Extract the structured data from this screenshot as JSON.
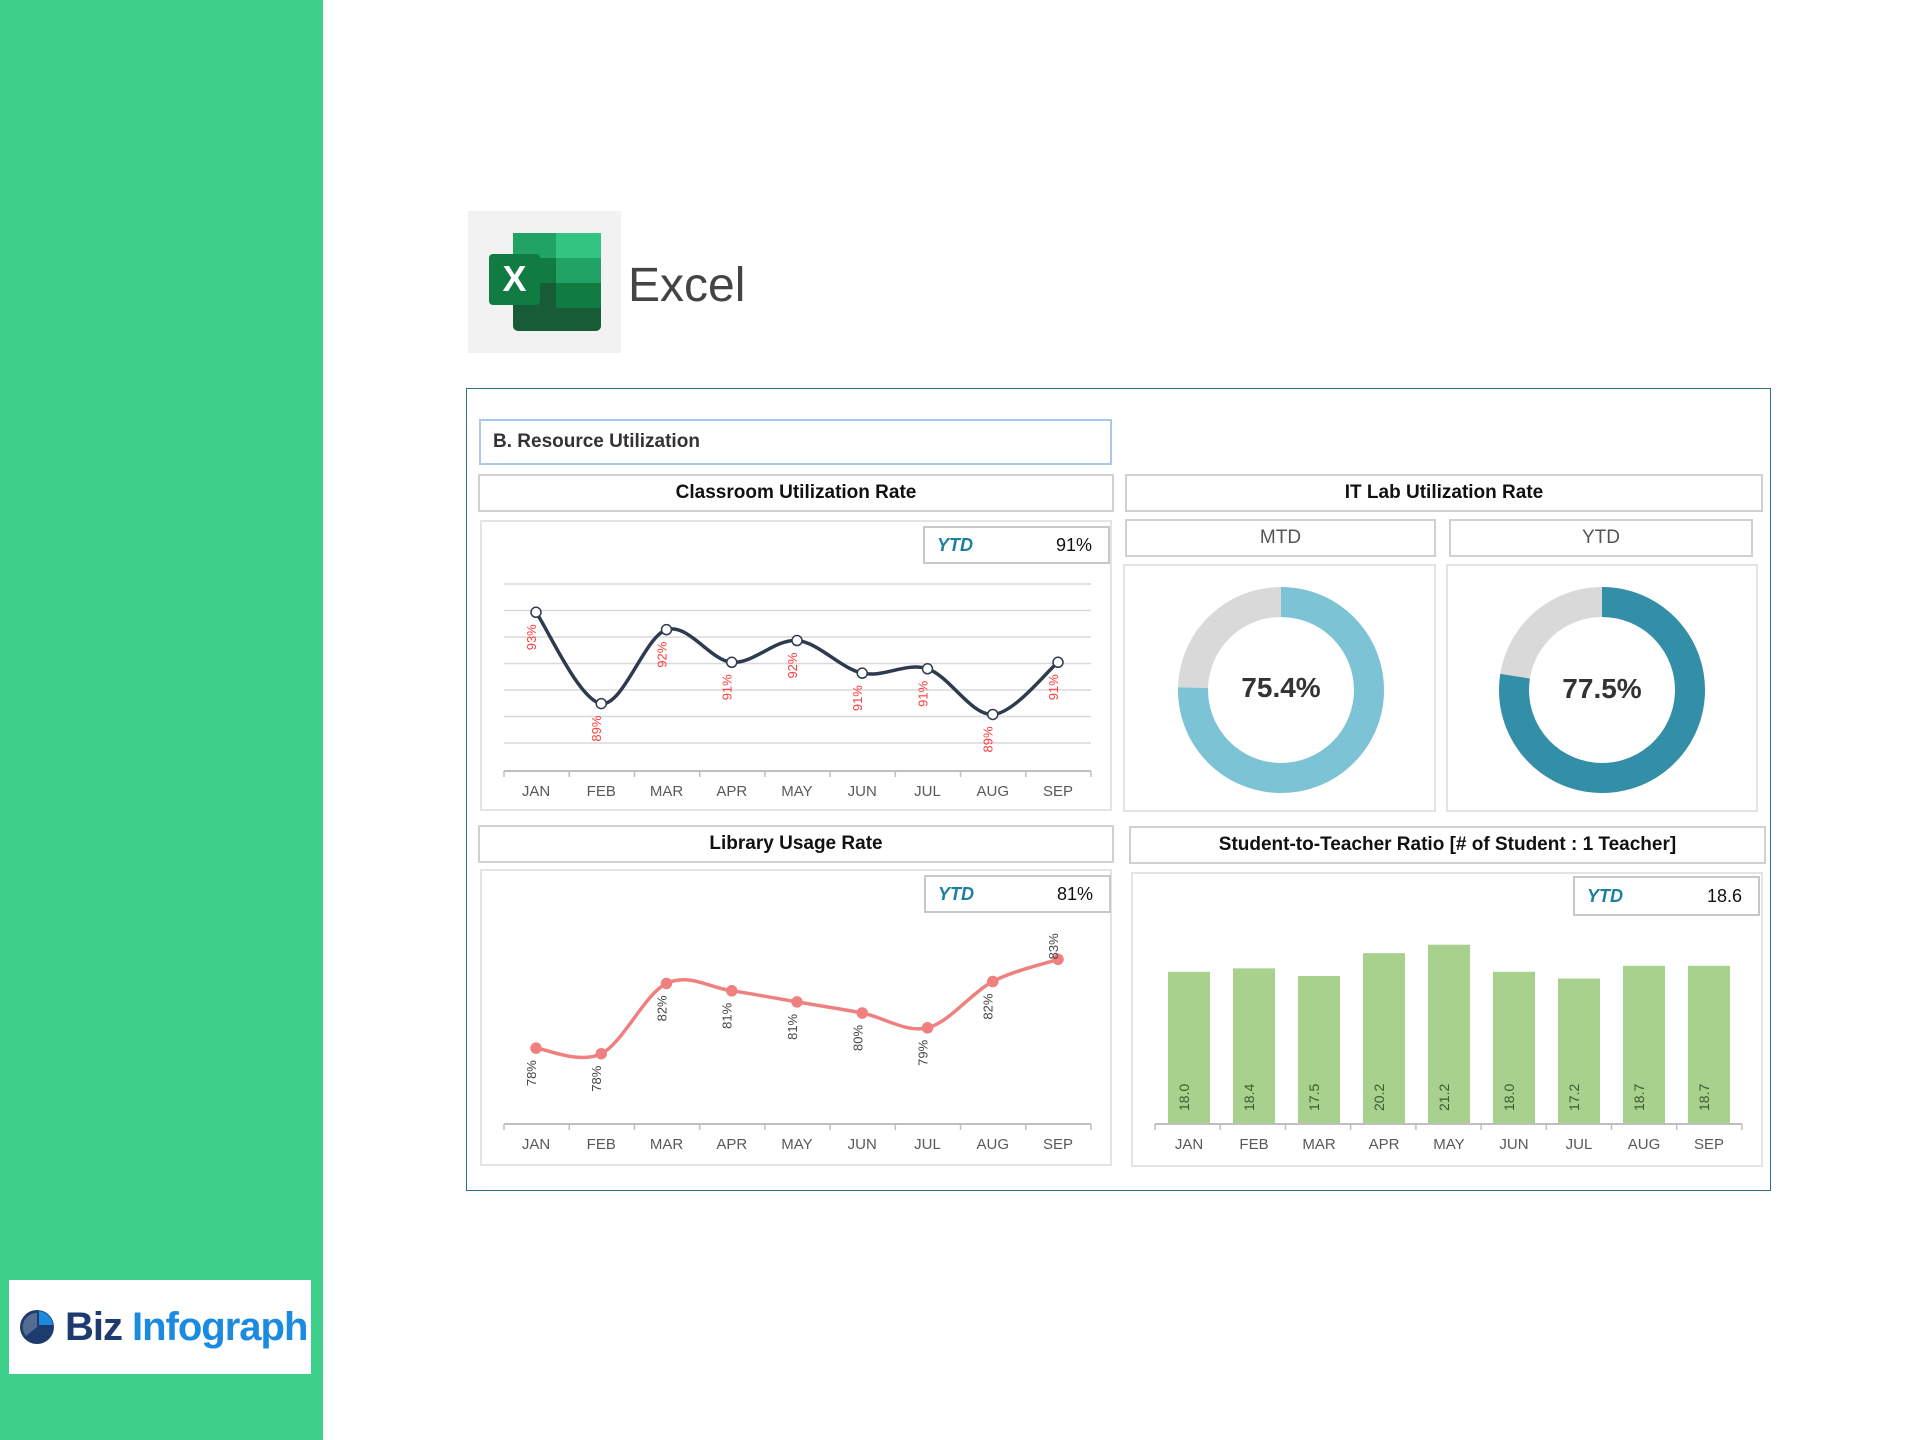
{
  "brand": {
    "app_name": "Excel",
    "logo_letter": "X",
    "company_part1": "Biz",
    "company_part2": "Infograph"
  },
  "section_title": "B. Resource Utilization",
  "colors": {
    "sidebar": "#3dd08a",
    "line_dark": "#2e3a4f",
    "label_red": "#ff3b3b",
    "line_pink": "#f08080",
    "donut_mtd": "#7cc3d6",
    "donut_ytd": "#338fa8",
    "donut_rest": "#d9d9d9",
    "bar": "#a9d18e"
  },
  "classroom": {
    "title": "Classroom Utilization Rate",
    "ytd_label": "YTD",
    "ytd_value": "91%"
  },
  "itlab": {
    "title": "IT Lab Utilization Rate",
    "mtd_label": "MTD",
    "ytd_label": "YTD",
    "mtd_value": "75.4%",
    "ytd_value": "77.5%",
    "mtd_fraction": 0.754,
    "ytd_fraction": 0.775
  },
  "library": {
    "title": "Library Usage Rate",
    "ytd_label": "YTD",
    "ytd_value": "81%"
  },
  "ratio": {
    "title": "Student-to-Teacher Ratio [# of Student : 1 Teacher]",
    "ytd_label": "YTD",
    "ytd_value": "18.6"
  },
  "chart_data": [
    {
      "type": "line",
      "title": "Classroom Utilization Rate",
      "categories": [
        "JAN",
        "FEB",
        "MAR",
        "APR",
        "MAY",
        "JUN",
        "JUL",
        "AUG",
        "SEP"
      ],
      "values": [
        93.3,
        89.1,
        92.5,
        91.0,
        92.0,
        90.5,
        90.7,
        88.6,
        91.0
      ],
      "labels": [
        "93%",
        "89%",
        "92%",
        "91%",
        "92%",
        "91%",
        "91%",
        "89%",
        "91%"
      ],
      "ylim": [
        86,
        94.6
      ],
      "grid": true
    },
    {
      "type": "line",
      "title": "Library Usage Rate",
      "categories": [
        "JAN",
        "FEB",
        "MAR",
        "APR",
        "MAY",
        "JUN",
        "JUL",
        "AUG",
        "SEP"
      ],
      "values": [
        78.1,
        77.8,
        81.6,
        81.2,
        80.6,
        80.0,
        79.2,
        81.7,
        82.9
      ],
      "labels": [
        "78%",
        "78%",
        "82%",
        "81%",
        "81%",
        "80%",
        "79%",
        "82%",
        "83%"
      ],
      "ylim": [
        74,
        86
      ],
      "grid": false
    },
    {
      "type": "bar",
      "title": "Student-to-Teacher Ratio [# of Student : 1 Teacher]",
      "categories": [
        "JAN",
        "FEB",
        "MAR",
        "APR",
        "MAY",
        "JUN",
        "JUL",
        "AUG",
        "SEP"
      ],
      "values": [
        18.0,
        18.4,
        17.5,
        20.2,
        21.2,
        18.0,
        17.2,
        18.7,
        18.7
      ],
      "labels": [
        "18.0",
        "18.4",
        "17.5",
        "20.2",
        "21.2",
        "18.0",
        "17.2",
        "18.7",
        "18.7"
      ],
      "ylim": [
        0,
        24
      ]
    },
    {
      "type": "pie",
      "title": "IT Lab Utilization Rate MTD",
      "values": [
        75.4,
        24.6
      ]
    },
    {
      "type": "pie",
      "title": "IT Lab Utilization Rate YTD",
      "values": [
        77.5,
        22.5
      ]
    }
  ]
}
